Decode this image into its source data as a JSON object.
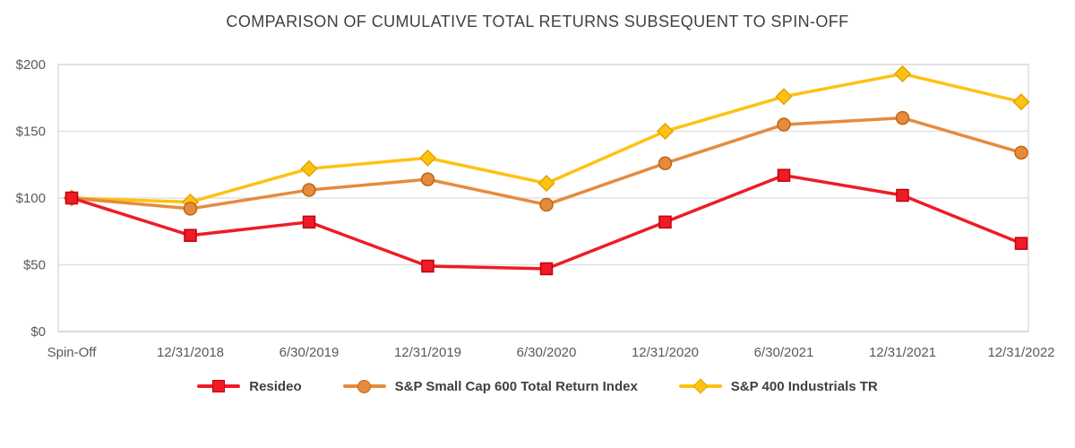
{
  "title": "COMPARISON OF CUMULATIVE TOTAL RETURNS SUBSEQUENT TO SPIN-OFF",
  "chart_data": {
    "type": "line",
    "categories": [
      "Spin-Off",
      "12/31/2018",
      "6/30/2019",
      "12/31/2019",
      "6/30/2020",
      "12/31/2020",
      "6/30/2021",
      "12/31/2021",
      "12/31/2022"
    ],
    "series": [
      {
        "name": "Resideo",
        "marker": "square",
        "color": "#ee1c25",
        "marker_border": "#c30010",
        "values": [
          100,
          72,
          82,
          49,
          47,
          82,
          117,
          102,
          66
        ]
      },
      {
        "name": "S&P Small Cap 600 Total Return Index",
        "marker": "circle",
        "color": "#e58b3e",
        "marker_border": "#c26414",
        "values": [
          100,
          92,
          106,
          114,
          95,
          126,
          155,
          160,
          134
        ]
      },
      {
        "name": "S&P 400 Industrials TR",
        "marker": "diamond",
        "color": "#ffc112",
        "marker_border": "#e3a400",
        "values": [
          100,
          97,
          122,
          130,
          111,
          150,
          176,
          193,
          172
        ]
      }
    ],
    "ylim": [
      0,
      200
    ],
    "yticks": [
      0,
      50,
      100,
      150,
      200
    ],
    "ytick_prefix": "$",
    "xlabel": "",
    "ylabel": "",
    "grid": true,
    "legend_position": "bottom"
  }
}
